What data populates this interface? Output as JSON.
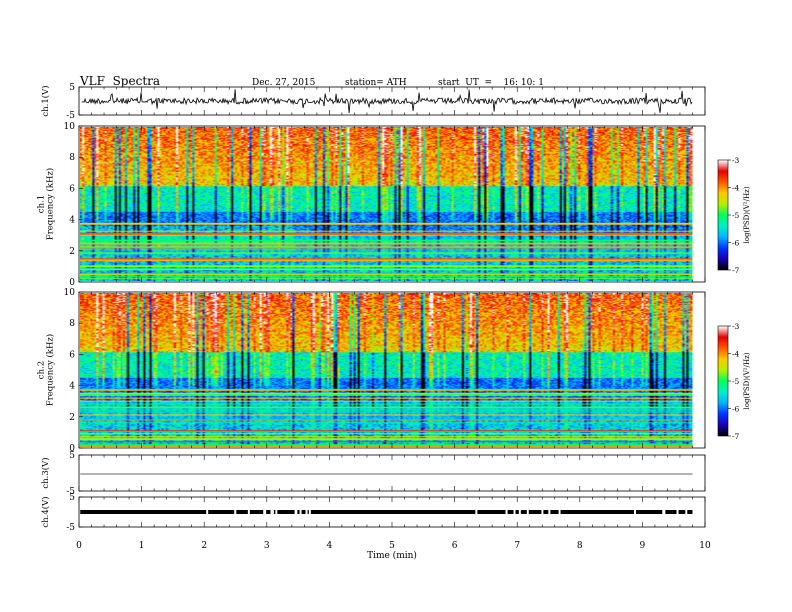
{
  "header": {
    "title": "VLF  Spectra",
    "date": "Dec. 27, 2015",
    "station": "station= ATH",
    "start": "start  UT  =    16: 10: 1"
  },
  "chart_data": {
    "type": "heatmap",
    "x": {
      "label": "Time  (min)",
      "range": [
        0,
        10
      ],
      "ticks": [
        "0",
        "1",
        "2",
        "3",
        "4",
        "5",
        "6",
        "7",
        "8",
        "9",
        "10"
      ]
    },
    "panels": [
      {
        "id": "ch1-waveform",
        "ylabel": "ch.1(V)",
        "ylim": [
          -5,
          5
        ],
        "yticks": [
          "5",
          "-5"
        ],
        "type": "line",
        "trace_end_min": 9.8
      },
      {
        "id": "ch1-spectrogram",
        "ylabel": "ch.1\nFrequency  (kHz)",
        "ylim": [
          0,
          10
        ],
        "yticks": [
          "0",
          "2",
          "4",
          "6",
          "8",
          "10"
        ],
        "type": "heatmap",
        "data_end_min": 9.8,
        "colorbar": {
          "label": "log(PSD)(V²/Hz)",
          "range": [
            -7,
            -3
          ],
          "ticks": [
            "-3",
            "-4",
            "-5",
            "-6",
            "-7"
          ]
        }
      },
      {
        "id": "ch2-spectrogram",
        "ylabel": "ch.2\nFrequency  (kHz)",
        "ylim": [
          0,
          10
        ],
        "yticks": [
          "0",
          "2",
          "4",
          "6",
          "8",
          "10"
        ],
        "type": "heatmap",
        "data_end_min": 9.8,
        "colorbar": {
          "label": "log(PSD)(V²/Hz)",
          "range": [
            -7,
            -3
          ],
          "ticks": [
            "-3",
            "-4",
            "-5",
            "-6",
            "-7"
          ]
        }
      },
      {
        "id": "ch3-waveform",
        "ylabel": "ch.3(V)",
        "ylim": [
          -5,
          5
        ],
        "yticks": [
          "5",
          "-5"
        ],
        "type": "line",
        "trace_end_min": 9.8
      },
      {
        "id": "ch4-waveform",
        "ylabel": "ch.4(V)",
        "ylim": [
          -5,
          5
        ],
        "yticks": [
          "5",
          "-5"
        ],
        "type": "line",
        "trace_end_min": 9.8
      }
    ],
    "colormap": [
      "#000000",
      "#1a00b4",
      "#0034ff",
      "#00b4ff",
      "#00f0c8",
      "#00ff5a",
      "#b4f000",
      "#ffc800",
      "#ff5a00",
      "#e60000",
      "#ffffff"
    ]
  }
}
